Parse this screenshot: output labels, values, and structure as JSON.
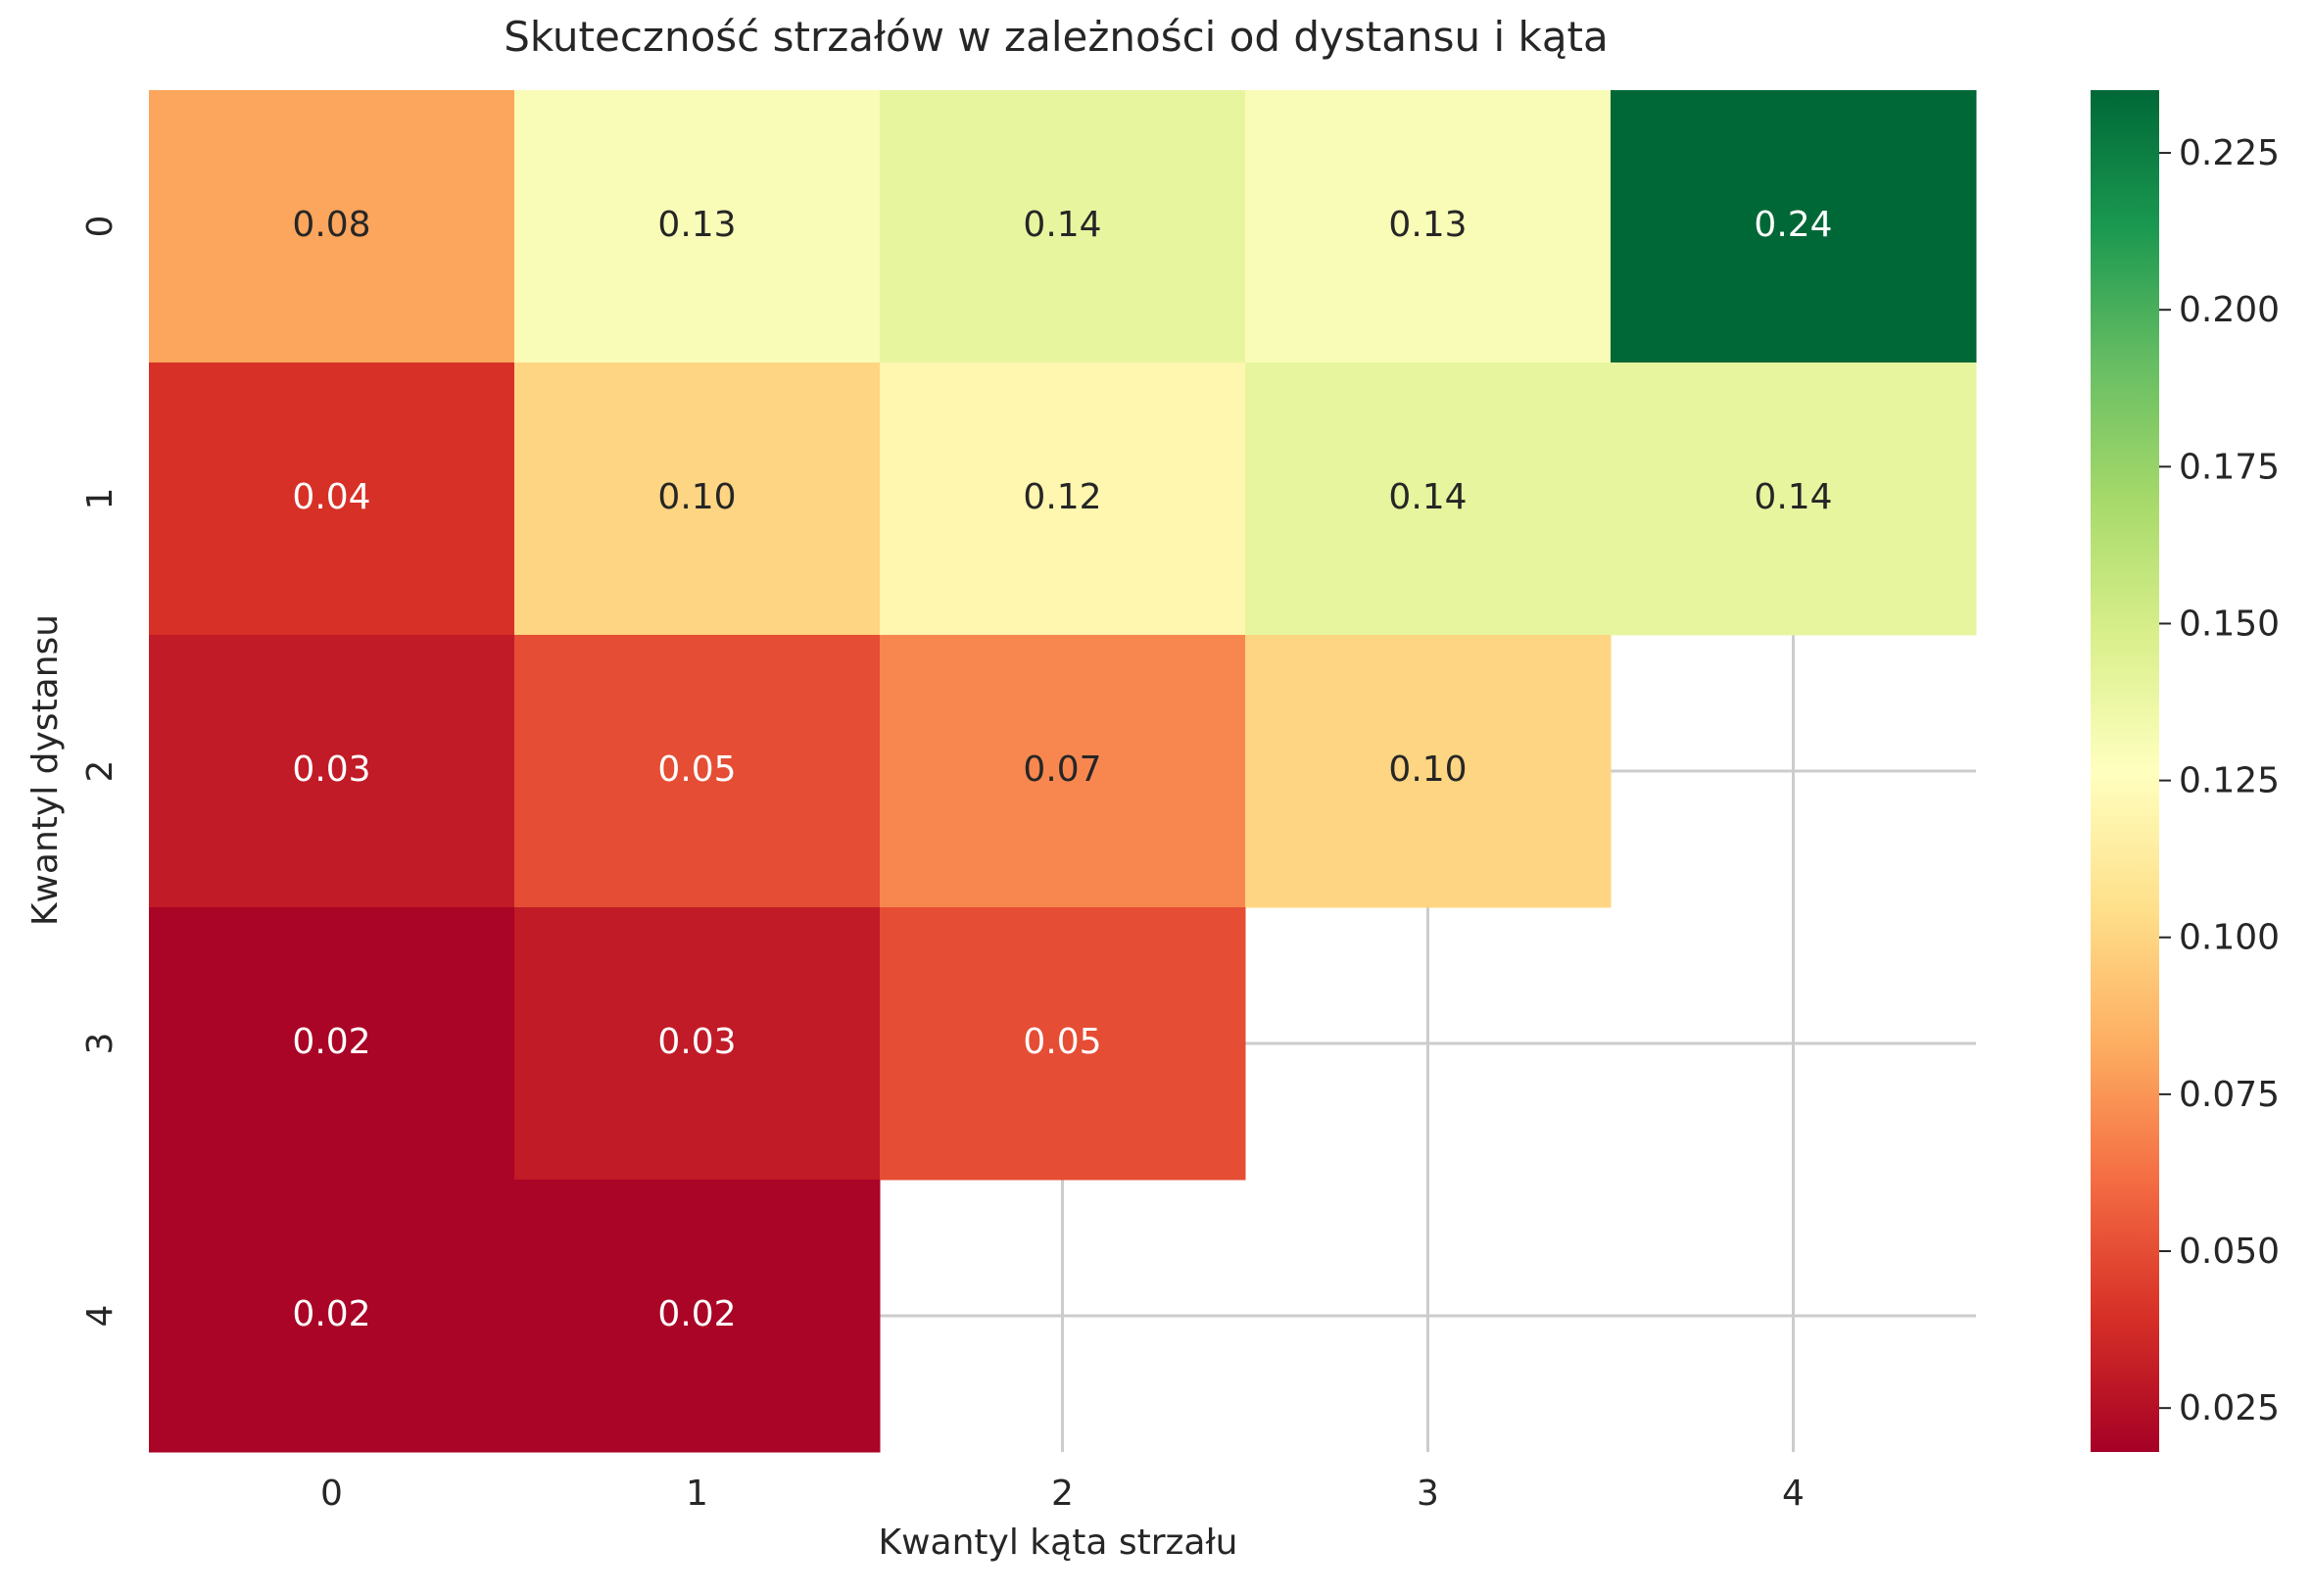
{
  "chart_data": {
    "type": "heatmap",
    "title": "Skuteczność strzałów w zależności od dystansu i kąta",
    "xlabel": "Kwantyl kąta strzału",
    "ylabel": "Kwantyl dystansu",
    "x_categories": [
      "0",
      "1",
      "2",
      "3",
      "4"
    ],
    "y_categories": [
      "0",
      "1",
      "2",
      "3",
      "4"
    ],
    "values": [
      [
        0.08,
        0.13,
        0.14,
        0.13,
        0.24
      ],
      [
        0.04,
        0.1,
        0.12,
        0.14,
        0.14
      ],
      [
        0.03,
        0.05,
        0.07,
        0.1,
        null
      ],
      [
        0.02,
        0.03,
        0.05,
        null,
        null
      ],
      [
        0.02,
        0.02,
        null,
        null,
        null
      ]
    ],
    "labels": [
      [
        "0.08",
        "0.13",
        "0.14",
        "0.13",
        "0.24"
      ],
      [
        "0.04",
        "0.10",
        "0.12",
        "0.14",
        "0.14"
      ],
      [
        "0.03",
        "0.05",
        "0.07",
        "0.10",
        ""
      ],
      [
        "0.02",
        "0.03",
        "0.05",
        "",
        ""
      ],
      [
        "0.02",
        "0.02",
        "",
        "",
        ""
      ]
    ],
    "colormap": "RdYlGn",
    "colorbar": {
      "vmin": 0.018,
      "vmax": 0.235,
      "ticks": [
        "0.025",
        "0.050",
        "0.075",
        "0.100",
        "0.125",
        "0.150",
        "0.175",
        "0.200",
        "0.225"
      ]
    },
    "grid": true
  }
}
